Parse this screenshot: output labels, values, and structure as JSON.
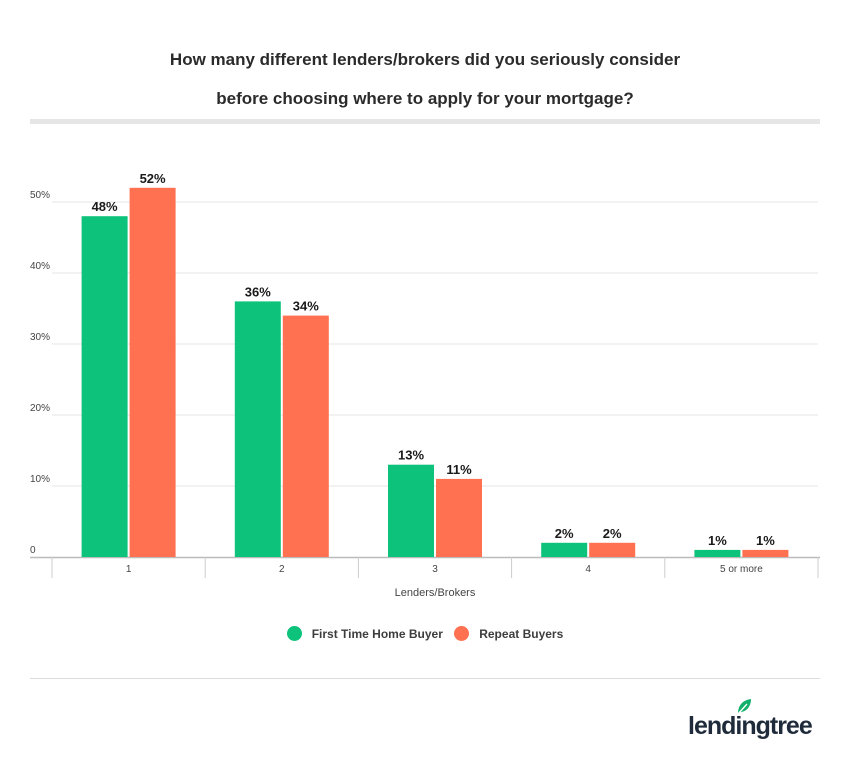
{
  "title_line1": "How many different lenders/brokers did you seriously consider",
  "title_line2": "before choosing where to apply for your mortgage?",
  "brand": "lendingtree",
  "colors": {
    "first_time": "#0dc27a",
    "repeat": "#ff7150",
    "grid": "#e6e6e6",
    "axis": "#bbbbbb",
    "logo_leaf": "#11b06a"
  },
  "chart_data": {
    "type": "bar",
    "title": "How many different lenders/brokers did you seriously consider before choosing where to apply for your mortgage?",
    "xlabel": "Lenders/Brokers",
    "ylabel": "",
    "categories": [
      "1",
      "2",
      "3",
      "4",
      "5 or more"
    ],
    "series": [
      {
        "name": "First Time Home Buyer",
        "values": [
          48,
          36,
          13,
          2,
          1
        ],
        "labels": [
          "48%",
          "36%",
          "13%",
          "2%",
          "1%"
        ]
      },
      {
        "name": "Repeat Buyers",
        "values": [
          52,
          34,
          11,
          2,
          1
        ],
        "labels": [
          "52%",
          "34%",
          "11%",
          "2%",
          "1%"
        ]
      }
    ],
    "yticks": [
      0,
      10,
      20,
      30,
      40,
      50
    ],
    "ytick_labels": [
      "0",
      "10%",
      "20%",
      "30%",
      "40%",
      "50%"
    ],
    "ylim": [
      0,
      50
    ],
    "grid": true,
    "legend_position": "bottom-center"
  }
}
